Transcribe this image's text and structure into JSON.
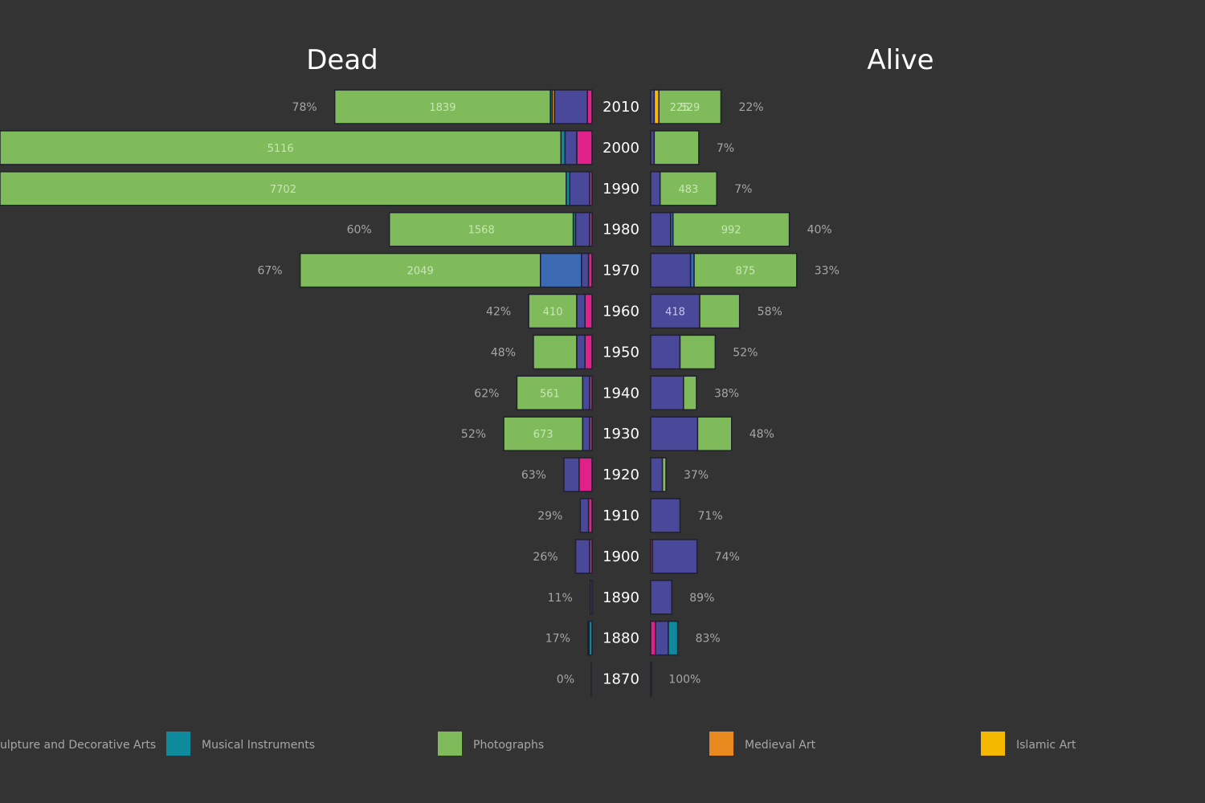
{
  "chart_data": {
    "type": "bar",
    "orientation": "horizontal-butterfly",
    "titles": {
      "left": "Dead",
      "right": "Alive"
    },
    "categories_note": "Decade bins (years)",
    "colors": {
      "Sculpture and Decorative Arts": "#4a4899",
      "Musical Instruments": "#0e8a9c",
      "Photographs": "#7fbb5a",
      "Medieval Art": "#e8891e",
      "Islamic Art": "#f4b800",
      "Drawings and Prints": "#3c6bb3",
      "Other": "#e0218a"
    },
    "legend": [
      {
        "name": "Sculpture and Decorative Arts",
        "label": "ulpture and Decorative Arts"
      },
      {
        "name": "Musical Instruments",
        "label": "Musical Instruments"
      },
      {
        "name": "Photographs",
        "label": "Photographs"
      },
      {
        "name": "Medieval Art",
        "label": "Medieval Art"
      },
      {
        "name": "Islamic Art",
        "label": "Islamic Art"
      }
    ],
    "rows": [
      {
        "year": "2010",
        "dead_pct": "78%",
        "alive_pct": "22%",
        "dead": [
          {
            "cat": "Photographs",
            "value": 1839,
            "label": "1839"
          },
          {
            "cat": "Musical Instruments",
            "value": 15
          },
          {
            "cat": "Medieval Art",
            "value": 20
          },
          {
            "cat": "Sculpture and Decorative Arts",
            "value": 280
          },
          {
            "cat": "Other",
            "value": 40
          }
        ],
        "alive": [
          {
            "cat": "Sculpture and Decorative Arts",
            "value": 30
          },
          {
            "cat": "Islamic Art",
            "value": 40
          },
          {
            "cat": "Photographs",
            "value": 529,
            "label": "529"
          }
        ],
        "alive_extra_label": "225"
      },
      {
        "year": "2000",
        "dead_pct": "",
        "alive_pct": "7%",
        "dead": [
          {
            "cat": "Photographs",
            "value": 5116,
            "label": "5116"
          },
          {
            "cat": "Musical Instruments",
            "value": 35
          },
          {
            "cat": "Sculpture and Decorative Arts",
            "value": 100
          },
          {
            "cat": "Other",
            "value": 130
          }
        ],
        "alive": [
          {
            "cat": "Sculpture and Decorative Arts",
            "value": 30
          },
          {
            "cat": "Photographs",
            "value": 380
          }
        ]
      },
      {
        "year": "1990",
        "dead_pct": "",
        "alive_pct": "7%",
        "dead": [
          {
            "cat": "Photographs",
            "value": 7702,
            "label": "7702"
          },
          {
            "cat": "Musical Instruments",
            "value": 30
          },
          {
            "cat": "Sculpture and Decorative Arts",
            "value": 170
          },
          {
            "cat": "Other",
            "value": 20
          }
        ],
        "alive": [
          {
            "cat": "Sculpture and Decorative Arts",
            "value": 80
          },
          {
            "cat": "Photographs",
            "value": 483,
            "label": "483"
          }
        ]
      },
      {
        "year": "1980",
        "dead_pct": "60%",
        "alive_pct": "40%",
        "dead": [
          {
            "cat": "Photographs",
            "value": 1568,
            "label": "1568"
          },
          {
            "cat": "Musical Instruments",
            "value": 20
          },
          {
            "cat": "Sculpture and Decorative Arts",
            "value": 120
          },
          {
            "cat": "Other",
            "value": 20
          }
        ],
        "alive": [
          {
            "cat": "Sculpture and Decorative Arts",
            "value": 170
          },
          {
            "cat": "Drawings and Prints",
            "value": 20
          },
          {
            "cat": "Photographs",
            "value": 992,
            "label": "992"
          }
        ]
      },
      {
        "year": "1970",
        "dead_pct": "67%",
        "alive_pct": "33%",
        "dead": [
          {
            "cat": "Photographs",
            "value": 2049,
            "label": "2049"
          },
          {
            "cat": "Drawings and Prints",
            "value": 350
          },
          {
            "cat": "Sculpture and Decorative Arts",
            "value": 60
          },
          {
            "cat": "Other",
            "value": 30
          }
        ],
        "alive": [
          {
            "cat": "Sculpture and Decorative Arts",
            "value": 340
          },
          {
            "cat": "Drawings and Prints",
            "value": 30
          },
          {
            "cat": "Photographs",
            "value": 875,
            "label": "875"
          }
        ]
      },
      {
        "year": "1960",
        "dead_pct": "42%",
        "alive_pct": "58%",
        "dead": [
          {
            "cat": "Photographs",
            "value": 410,
            "label": "410"
          },
          {
            "cat": "Sculpture and Decorative Arts",
            "value": 70
          },
          {
            "cat": "Other",
            "value": 60
          }
        ],
        "alive": [
          {
            "cat": "Sculpture and Decorative Arts",
            "value": 418,
            "label": "418"
          },
          {
            "cat": "Photographs",
            "value": 340
          }
        ]
      },
      {
        "year": "1950",
        "dead_pct": "48%",
        "alive_pct": "52%",
        "dead": [
          {
            "cat": "Photographs",
            "value": 370
          },
          {
            "cat": "Sculpture and Decorative Arts",
            "value": 70
          },
          {
            "cat": "Other",
            "value": 60
          }
        ],
        "alive": [
          {
            "cat": "Sculpture and Decorative Arts",
            "value": 250
          },
          {
            "cat": "Photographs",
            "value": 300
          }
        ]
      },
      {
        "year": "1940",
        "dead_pct": "62%",
        "alive_pct": "38%",
        "dead": [
          {
            "cat": "Photographs",
            "value": 561,
            "label": "561"
          },
          {
            "cat": "Sculpture and Decorative Arts",
            "value": 60
          },
          {
            "cat": "Other",
            "value": 20
          }
        ],
        "alive": [
          {
            "cat": "Sculpture and Decorative Arts",
            "value": 280
          },
          {
            "cat": "Photographs",
            "value": 110
          }
        ]
      },
      {
        "year": "1930",
        "dead_pct": "52%",
        "alive_pct": "48%",
        "dead": [
          {
            "cat": "Photographs",
            "value": 673,
            "label": "673"
          },
          {
            "cat": "Sculpture and Decorative Arts",
            "value": 60
          },
          {
            "cat": "Other",
            "value": 20
          }
        ],
        "alive": [
          {
            "cat": "Sculpture and Decorative Arts",
            "value": 400
          },
          {
            "cat": "Photographs",
            "value": 290
          }
        ]
      },
      {
        "year": "1920",
        "dead_pct": "63%",
        "alive_pct": "37%",
        "dead": [
          {
            "cat": "Sculpture and Decorative Arts",
            "value": 130
          },
          {
            "cat": "Other",
            "value": 110
          }
        ],
        "alive": [
          {
            "cat": "Sculpture and Decorative Arts",
            "value": 100
          },
          {
            "cat": "Photographs",
            "value": 30
          }
        ]
      },
      {
        "year": "1910",
        "dead_pct": "29%",
        "alive_pct": "71%",
        "dead": [
          {
            "cat": "Sculpture and Decorative Arts",
            "value": 70
          },
          {
            "cat": "Other",
            "value": 30
          }
        ],
        "alive": [
          {
            "cat": "Sculpture and Decorative Arts",
            "value": 250
          }
        ]
      },
      {
        "year": "1900",
        "dead_pct": "26%",
        "alive_pct": "74%",
        "dead": [
          {
            "cat": "Sculpture and Decorative Arts",
            "value": 120
          },
          {
            "cat": "Other",
            "value": 20
          }
        ],
        "alive": [
          {
            "cat": "Other",
            "value": 15
          },
          {
            "cat": "Sculpture and Decorative Arts",
            "value": 380
          }
        ]
      },
      {
        "year": "1890",
        "dead_pct": "11%",
        "alive_pct": "89%",
        "dead": [
          {
            "cat": "Sculpture and Decorative Arts",
            "value": 15
          }
        ],
        "alive": [
          {
            "cat": "Sculpture and Decorative Arts",
            "value": 180
          }
        ]
      },
      {
        "year": "1880",
        "dead_pct": "17%",
        "alive_pct": "83%",
        "dead": [
          {
            "cat": "Sculpture and Decorative Arts",
            "value": 10
          },
          {
            "cat": "Musical Instruments",
            "value": 25
          }
        ],
        "alive": [
          {
            "cat": "Other",
            "value": 40
          },
          {
            "cat": "Sculpture and Decorative Arts",
            "value": 110
          },
          {
            "cat": "Musical Instruments",
            "value": 80
          }
        ]
      },
      {
        "year": "1870",
        "dead_pct": "0%",
        "alive_pct": "100%",
        "dead": [],
        "alive": [
          {
            "cat": "Sculpture and Decorative Arts",
            "value": 2
          }
        ]
      }
    ]
  }
}
